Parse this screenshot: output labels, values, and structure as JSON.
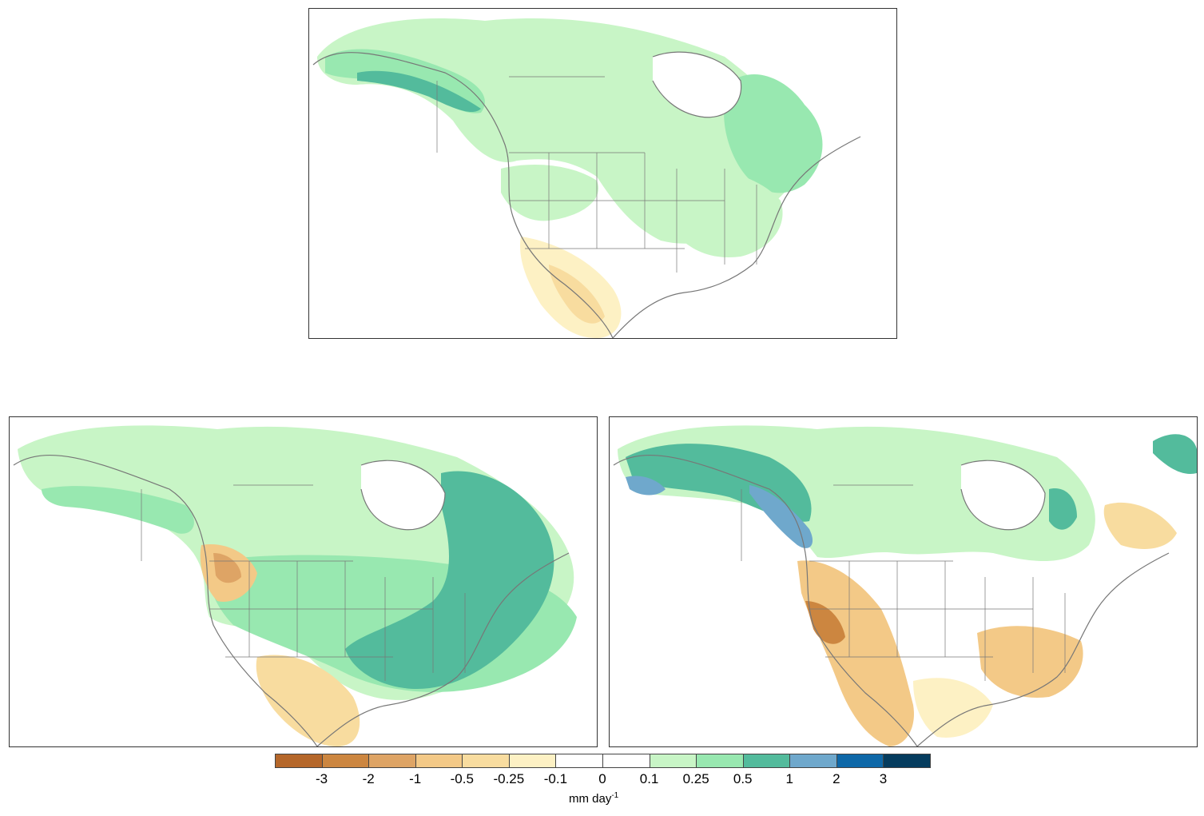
{
  "colorbar": {
    "colors": [
      "#b5672a",
      "#cc8640",
      "#dea465",
      "#f3c987",
      "#f8dc9f",
      "#fdf1c4",
      "#ffffff",
      "#ffffff",
      "#c8f5c6",
      "#98e8b0",
      "#53bb9c",
      "#6fa8cc",
      "#0e68a8",
      "#053c5e"
    ],
    "ticks": [
      "-3",
      "-2",
      "-1",
      "-0.5",
      "-0.25",
      "-0.1",
      "0",
      "0.1",
      "0.25",
      "0.5",
      "1",
      "2",
      "3"
    ]
  },
  "units": {
    "base": "mm day",
    "exponent": "-1"
  },
  "maps": [
    {
      "region": "north-america",
      "land_line_color": "#777777"
    },
    {
      "region": "north-america",
      "land_line_color": "#777777"
    },
    {
      "region": "north-america",
      "land_line_color": "#777777"
    }
  ]
}
